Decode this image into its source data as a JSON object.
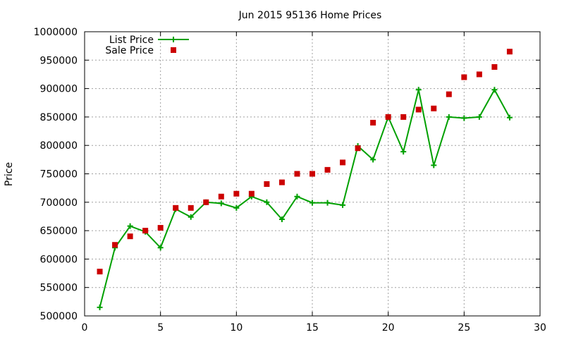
{
  "chart_data": {
    "type": "line",
    "title": "Jun 2015 95136 Home Prices",
    "xlabel": "",
    "ylabel": "Price",
    "xlim": [
      0,
      30
    ],
    "ylim": [
      500000,
      1000000
    ],
    "x_ticks": [
      "0",
      "5",
      "10",
      "15",
      "20",
      "25",
      "30"
    ],
    "y_ticks": [
      "500000",
      "550000",
      "600000",
      "650000",
      "700000",
      "750000",
      "800000",
      "850000",
      "900000",
      "950000",
      "1000000"
    ],
    "grid": true,
    "legend_position": "top-left",
    "series": [
      {
        "name": "List Price",
        "style": "line-with-plus-markers",
        "color": "#00a000",
        "x": [
          1,
          2,
          3,
          4,
          5,
          6,
          7,
          8,
          9,
          10,
          11,
          12,
          13,
          14,
          15,
          16,
          17,
          18,
          19,
          20,
          21,
          22,
          23,
          24,
          25,
          26,
          27,
          28
        ],
        "y": [
          515000,
          620000,
          658000,
          648000,
          620000,
          688000,
          674000,
          700000,
          698000,
          690000,
          710000,
          700000,
          670000,
          710000,
          699000,
          699000,
          695000,
          799000,
          775000,
          850000,
          789000,
          898000,
          765000,
          850000,
          848000,
          850000,
          898000,
          849000
        ]
      },
      {
        "name": "Sale Price",
        "style": "square-markers",
        "color": "#cc0000",
        "x": [
          1,
          2,
          3,
          4,
          5,
          6,
          7,
          8,
          9,
          10,
          11,
          12,
          13,
          14,
          15,
          16,
          17,
          18,
          19,
          20,
          21,
          22,
          23,
          24,
          25,
          26,
          27,
          28
        ],
        "y": [
          578000,
          625000,
          640000,
          650000,
          655000,
          690000,
          690000,
          700000,
          710000,
          715000,
          715000,
          732000,
          735000,
          750000,
          750000,
          757000,
          770000,
          795000,
          840000,
          850000,
          850000,
          863000,
          865000,
          890000,
          920000,
          925000,
          938000,
          965000
        ]
      }
    ]
  }
}
